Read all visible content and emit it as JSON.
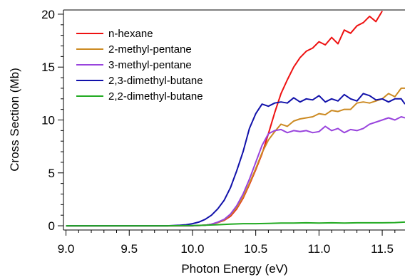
{
  "chart_data": {
    "type": "line",
    "title": "",
    "xlabel": "Photon Energy (eV)",
    "ylabel": "Cross Section (Mb)",
    "xlim": [
      8.98,
      11.68
    ],
    "ylim": [
      -0.4,
      20.4
    ],
    "xticks": [
      9.0,
      9.5,
      10.0,
      10.5,
      11.0,
      11.5
    ],
    "xtick_labels": [
      "9.0",
      "9.5",
      "10.0",
      "10.5",
      "11.0",
      "11.5"
    ],
    "yticks": [
      0,
      5,
      10,
      15,
      20
    ],
    "ytick_labels": [
      "0",
      "5",
      "10",
      "15",
      "20"
    ],
    "grid": false,
    "legend": "top-left",
    "series": [
      {
        "name": "n-hexane",
        "color": "#ee1111",
        "x": [
          9.0,
          9.8,
          10.0,
          10.1,
          10.15,
          10.2,
          10.25,
          10.3,
          10.35,
          10.4,
          10.45,
          10.5,
          10.55,
          10.6,
          10.65,
          10.7,
          10.75,
          10.8,
          10.85,
          10.9,
          10.95,
          11.0,
          11.05,
          11.1,
          11.15,
          11.2,
          11.25,
          11.3,
          11.35,
          11.4,
          11.45,
          11.5
        ],
        "y": [
          0.0,
          0.0,
          0.0,
          0.05,
          0.15,
          0.3,
          0.5,
          0.9,
          1.6,
          2.6,
          3.9,
          5.3,
          6.8,
          8.7,
          10.7,
          12.5,
          13.8,
          15.0,
          15.9,
          16.5,
          16.8,
          17.4,
          17.1,
          17.8,
          17.2,
          18.5,
          18.2,
          18.9,
          19.2,
          19.8,
          19.3,
          20.3
        ]
      },
      {
        "name": "2-methyl-pentane",
        "color": "#cc8a22",
        "x": [
          9.0,
          9.8,
          10.0,
          10.1,
          10.15,
          10.2,
          10.25,
          10.3,
          10.35,
          10.4,
          10.45,
          10.5,
          10.55,
          10.6,
          10.65,
          10.7,
          10.75,
          10.8,
          10.85,
          10.9,
          10.95,
          11.0,
          11.05,
          11.1,
          11.15,
          11.2,
          11.25,
          11.3,
          11.35,
          11.4,
          11.45,
          11.5,
          11.55,
          11.6,
          11.65,
          11.68
        ],
        "y": [
          0.0,
          0.0,
          0.0,
          0.05,
          0.15,
          0.3,
          0.55,
          1.0,
          1.7,
          2.7,
          4.0,
          5.4,
          6.9,
          8.1,
          8.9,
          9.6,
          9.4,
          9.9,
          10.1,
          10.2,
          10.3,
          10.6,
          10.5,
          10.9,
          10.8,
          11.0,
          11.0,
          11.6,
          11.7,
          11.6,
          11.8,
          12.0,
          12.5,
          12.2,
          13.0,
          13.0
        ]
      },
      {
        "name": "3-methyl-pentane",
        "color": "#9944dd",
        "x": [
          9.0,
          9.8,
          10.0,
          10.1,
          10.15,
          10.2,
          10.25,
          10.3,
          10.35,
          10.4,
          10.45,
          10.5,
          10.55,
          10.6,
          10.65,
          10.7,
          10.75,
          10.8,
          10.85,
          10.9,
          10.95,
          11.0,
          11.05,
          11.1,
          11.15,
          11.2,
          11.25,
          11.3,
          11.35,
          11.4,
          11.45,
          11.5,
          11.55,
          11.6,
          11.65,
          11.68
        ],
        "y": [
          0.0,
          0.0,
          0.0,
          0.05,
          0.15,
          0.35,
          0.6,
          1.1,
          1.9,
          3.0,
          4.4,
          6.0,
          7.6,
          8.7,
          9.0,
          9.1,
          8.8,
          9.0,
          8.9,
          9.0,
          8.8,
          8.9,
          9.4,
          9.0,
          9.2,
          8.8,
          9.1,
          9.0,
          9.2,
          9.6,
          9.8,
          10.0,
          10.2,
          10.0,
          10.3,
          10.2
        ]
      },
      {
        "name": "2,3-dimethyl-butane",
        "color": "#1111aa",
        "x": [
          9.0,
          9.8,
          9.9,
          9.95,
          10.0,
          10.05,
          10.1,
          10.15,
          10.2,
          10.25,
          10.3,
          10.35,
          10.4,
          10.45,
          10.5,
          10.55,
          10.6,
          10.65,
          10.7,
          10.75,
          10.8,
          10.85,
          10.9,
          10.95,
          11.0,
          11.05,
          11.1,
          11.15,
          11.2,
          11.25,
          11.3,
          11.35,
          11.4,
          11.45,
          11.5,
          11.55,
          11.6,
          11.65,
          11.68
        ],
        "y": [
          0.0,
          0.0,
          0.05,
          0.1,
          0.2,
          0.35,
          0.6,
          1.0,
          1.6,
          2.4,
          3.6,
          5.2,
          7.0,
          9.2,
          10.6,
          11.5,
          11.3,
          11.6,
          11.7,
          11.6,
          12.1,
          11.7,
          12.0,
          11.9,
          12.3,
          11.7,
          12.0,
          11.8,
          12.4,
          12.0,
          11.8,
          12.5,
          12.3,
          11.9,
          12.0,
          11.7,
          12.0,
          12.0,
          11.5
        ]
      },
      {
        "name": "2,2-dimethyl-butane",
        "color": "#22aa22",
        "x": [
          9.0,
          9.8,
          10.0,
          10.1,
          10.2,
          10.3,
          10.4,
          10.5,
          10.6,
          10.7,
          10.8,
          10.9,
          11.0,
          11.1,
          11.2,
          11.3,
          11.4,
          11.5,
          11.6,
          11.68
        ],
        "y": [
          0.0,
          0.0,
          0.02,
          0.05,
          0.1,
          0.15,
          0.2,
          0.2,
          0.22,
          0.25,
          0.25,
          0.28,
          0.25,
          0.28,
          0.25,
          0.28,
          0.28,
          0.28,
          0.3,
          0.35
        ]
      }
    ]
  }
}
